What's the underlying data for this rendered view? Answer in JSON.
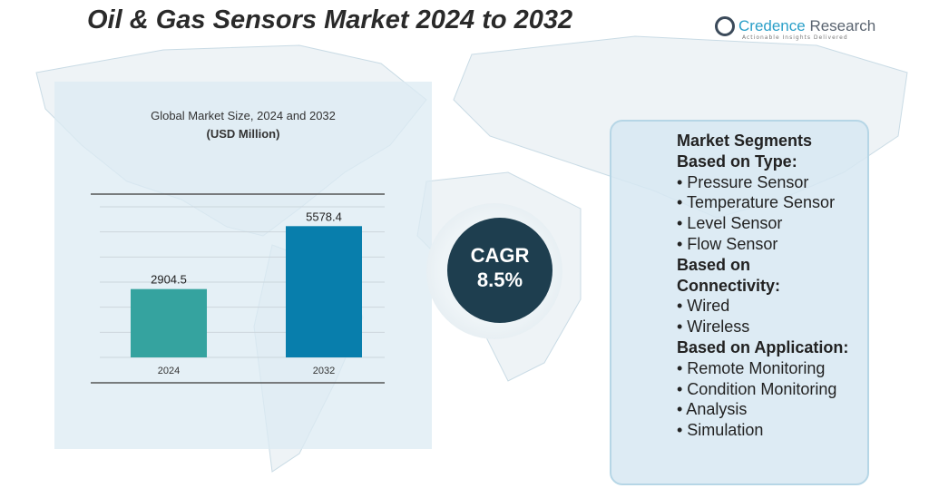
{
  "title": "Oil & Gas Sensors Market 2024 to 2032",
  "logo": {
    "name_a": "Credence",
    "name_b": " Research",
    "tagline": "Actionable Insights Delivered"
  },
  "chart_data": {
    "type": "bar",
    "title": "Global Market Size, 2024 and 2032",
    "subtitle": "(USD Million)",
    "categories": [
      "2024",
      "2032"
    ],
    "values": [
      2904.5,
      5578.4
    ],
    "value_labels": [
      "2904.5",
      "5578.4"
    ],
    "colors": [
      "#35a39f",
      "#087eac"
    ],
    "ylim": [
      0,
      6400
    ],
    "grid": true
  },
  "cagr": {
    "label": "CAGR",
    "value": "8.5%"
  },
  "segments": {
    "heading": "Market Segments",
    "groups": [
      {
        "title": "Based on Type:",
        "items": [
          "• Pressure Sensor",
          "• Temperature Sensor",
          "• Level Sensor",
          "• Flow Sensor"
        ]
      },
      {
        "title": "Based on Connectivity:",
        "items": [
          "• Wired",
          "• Wireless"
        ]
      },
      {
        "title": "Based on Application:",
        "items": [
          "• Remote Monitoring",
          "• Condition Monitoring",
          "• Analysis",
          "• Simulation"
        ]
      }
    ]
  }
}
